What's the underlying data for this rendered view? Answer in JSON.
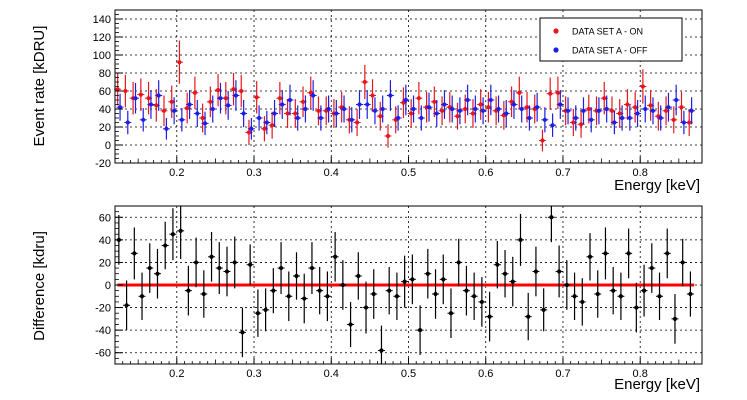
{
  "chart_data": [
    {
      "type": "scatter",
      "xlabel": "Energy [keV]",
      "ylabel": "Event rate [kDRU]",
      "xlim": [
        0.12,
        0.88
      ],
      "ylim": [
        -20,
        150
      ],
      "x_ticks": [
        "0.2",
        "0.3",
        "0.4",
        "0.5",
        "0.6",
        "0.7",
        "0.8"
      ],
      "y_ticks": [
        "-20",
        "0",
        "20",
        "40",
        "60",
        "80",
        "100",
        "120",
        "140"
      ],
      "grid": true,
      "legend_position": "top-right",
      "series": [
        {
          "name": "DATA SET A - ON",
          "color": "#e8161b",
          "x": [
            0.125,
            0.135,
            0.145,
            0.155,
            0.165,
            0.175,
            0.185,
            0.195,
            0.205,
            0.215,
            0.225,
            0.235,
            0.245,
            0.255,
            0.265,
            0.275,
            0.285,
            0.295,
            0.305,
            0.315,
            0.325,
            0.335,
            0.345,
            0.355,
            0.365,
            0.375,
            0.385,
            0.395,
            0.405,
            0.415,
            0.425,
            0.435,
            0.445,
            0.455,
            0.465,
            0.475,
            0.485,
            0.495,
            0.505,
            0.515,
            0.525,
            0.535,
            0.545,
            0.555,
            0.565,
            0.575,
            0.585,
            0.595,
            0.605,
            0.615,
            0.625,
            0.635,
            0.645,
            0.655,
            0.665,
            0.675,
            0.685,
            0.695,
            0.705,
            0.715,
            0.725,
            0.735,
            0.745,
            0.755,
            0.765,
            0.775,
            0.785,
            0.795,
            0.805,
            0.815,
            0.825,
            0.835,
            0.845,
            0.855,
            0.865
          ],
          "y": [
            62,
            60,
            52,
            56,
            52,
            44,
            38,
            48,
            92,
            41,
            58,
            30,
            48,
            61,
            52,
            62,
            60,
            14,
            53,
            18,
            22,
            52,
            35,
            35,
            48,
            58,
            38,
            38,
            35,
            42,
            28,
            25,
            70,
            55,
            32,
            10,
            28,
            47,
            35,
            52,
            42,
            48,
            38,
            42,
            32,
            40,
            35,
            45,
            42,
            38,
            33,
            48,
            58,
            42,
            40,
            5,
            57,
            58,
            38,
            25,
            23,
            40,
            38,
            52,
            38,
            35,
            45,
            42,
            65,
            44,
            32,
            38,
            28,
            42,
            25
          ],
          "err": [
            18,
            18,
            18,
            18,
            18,
            18,
            17,
            18,
            24,
            17,
            18,
            16,
            17,
            18,
            18,
            18,
            18,
            14,
            18,
            14,
            15,
            18,
            16,
            16,
            17,
            18,
            16,
            16,
            16,
            17,
            15,
            15,
            19,
            18,
            16,
            13,
            15,
            17,
            16,
            18,
            17,
            17,
            16,
            17,
            15,
            16,
            16,
            17,
            17,
            16,
            16,
            17,
            18,
            17,
            16,
            12,
            18,
            18,
            16,
            15,
            15,
            16,
            16,
            18,
            16,
            16,
            17,
            17,
            19,
            17,
            16,
            16,
            15,
            17,
            15
          ]
        },
        {
          "name": "DATA SET A - OFF",
          "color": "#1e1ee6",
          "x": [
            0.125,
            0.135,
            0.145,
            0.155,
            0.165,
            0.175,
            0.185,
            0.195,
            0.205,
            0.215,
            0.225,
            0.235,
            0.245,
            0.255,
            0.265,
            0.275,
            0.285,
            0.295,
            0.305,
            0.315,
            0.325,
            0.335,
            0.345,
            0.355,
            0.365,
            0.375,
            0.385,
            0.395,
            0.405,
            0.415,
            0.425,
            0.435,
            0.445,
            0.455,
            0.465,
            0.475,
            0.485,
            0.495,
            0.505,
            0.515,
            0.525,
            0.535,
            0.545,
            0.555,
            0.565,
            0.575,
            0.585,
            0.595,
            0.605,
            0.615,
            0.625,
            0.635,
            0.645,
            0.655,
            0.665,
            0.675,
            0.685,
            0.695,
            0.705,
            0.715,
            0.725,
            0.735,
            0.745,
            0.755,
            0.765,
            0.775,
            0.785,
            0.795,
            0.805,
            0.815,
            0.825,
            0.835,
            0.845,
            0.855,
            0.865
          ],
          "y": [
            42,
            25,
            52,
            28,
            45,
            55,
            18,
            38,
            28,
            45,
            35,
            24,
            40,
            52,
            44,
            55,
            35,
            18,
            30,
            25,
            35,
            45,
            50,
            30,
            40,
            55,
            30,
            40,
            35,
            40,
            28,
            45,
            45,
            38,
            40,
            55,
            30,
            50,
            40,
            30,
            42,
            35,
            45,
            40,
            38,
            50,
            40,
            38,
            50,
            40,
            35,
            45,
            40,
            30,
            42,
            28,
            22,
            45,
            38,
            30,
            38,
            28,
            38,
            40,
            25,
            30,
            30,
            35,
            40,
            38,
            30,
            42,
            50,
            25,
            38
          ],
          "err": [
            15,
            13,
            17,
            13,
            16,
            17,
            12,
            15,
            13,
            16,
            15,
            13,
            15,
            17,
            16,
            17,
            15,
            12,
            14,
            13,
            15,
            16,
            17,
            14,
            15,
            17,
            14,
            15,
            15,
            15,
            14,
            16,
            16,
            15,
            15,
            17,
            14,
            17,
            15,
            14,
            16,
            15,
            16,
            15,
            15,
            17,
            15,
            15,
            17,
            15,
            15,
            16,
            15,
            14,
            16,
            14,
            13,
            16,
            15,
            14,
            15,
            14,
            15,
            15,
            13,
            14,
            14,
            15,
            15,
            15,
            14,
            16,
            17,
            13,
            15
          ]
        }
      ]
    },
    {
      "type": "scatter",
      "xlabel": "Energy [keV]",
      "ylabel": "Difference [kdru]",
      "xlim": [
        0.12,
        0.88
      ],
      "ylim": [
        -70,
        70
      ],
      "x_ticks": [
        "0.2",
        "0.3",
        "0.4",
        "0.5",
        "0.6",
        "0.7",
        "0.8"
      ],
      "y_ticks": [
        "-60",
        "-40",
        "-20",
        "0",
        "20",
        "40",
        "60"
      ],
      "grid": true,
      "zero_line_color": "#ff0000",
      "series": [
        {
          "color": "#000000",
          "x": [
            0.125,
            0.135,
            0.145,
            0.155,
            0.165,
            0.175,
            0.185,
            0.195,
            0.205,
            0.215,
            0.225,
            0.235,
            0.245,
            0.255,
            0.265,
            0.275,
            0.285,
            0.295,
            0.305,
            0.315,
            0.325,
            0.335,
            0.345,
            0.355,
            0.365,
            0.375,
            0.385,
            0.395,
            0.405,
            0.415,
            0.425,
            0.435,
            0.445,
            0.455,
            0.465,
            0.475,
            0.485,
            0.495,
            0.505,
            0.515,
            0.525,
            0.535,
            0.545,
            0.555,
            0.565,
            0.575,
            0.585,
            0.595,
            0.605,
            0.615,
            0.625,
            0.635,
            0.645,
            0.655,
            0.665,
            0.675,
            0.685,
            0.695,
            0.705,
            0.715,
            0.725,
            0.735,
            0.745,
            0.755,
            0.765,
            0.775,
            0.785,
            0.795,
            0.805,
            0.815,
            0.825,
            0.835,
            0.845,
            0.855,
            0.865
          ],
          "y": [
            40,
            -18,
            28,
            -10,
            15,
            10,
            35,
            45,
            48,
            -5,
            20,
            -8,
            25,
            15,
            12,
            20,
            -42,
            18,
            -25,
            -22,
            -5,
            15,
            -10,
            8,
            -12,
            15,
            -5,
            -10,
            25,
            0,
            -35,
            8,
            -20,
            -8,
            -58,
            -5,
            -10,
            3,
            5,
            -40,
            10,
            -8,
            5,
            -25,
            20,
            -5,
            -10,
            -15,
            -28,
            18,
            10,
            3,
            40,
            -28,
            12,
            -22,
            60,
            12,
            0,
            -10,
            -15,
            25,
            -8,
            28,
            -5,
            -10,
            28,
            -20,
            -5,
            15,
            -10,
            28,
            -30,
            20,
            -8
          ],
          "err": [
            22,
            22,
            23,
            21,
            22,
            22,
            21,
            23,
            25,
            22,
            22,
            21,
            22,
            23,
            22,
            23,
            22,
            18,
            21,
            19,
            20,
            23,
            22,
            21,
            22,
            23,
            21,
            22,
            22,
            22,
            20,
            21,
            23,
            22,
            22,
            21,
            21,
            23,
            22,
            22,
            22,
            22,
            22,
            22,
            21,
            22,
            21,
            22,
            22,
            21,
            21,
            22,
            23,
            21,
            22,
            19,
            22,
            23,
            22,
            21,
            21,
            21,
            21,
            23,
            21,
            21,
            22,
            22,
            23,
            22,
            21,
            22,
            22,
            21,
            20
          ]
        }
      ]
    }
  ]
}
